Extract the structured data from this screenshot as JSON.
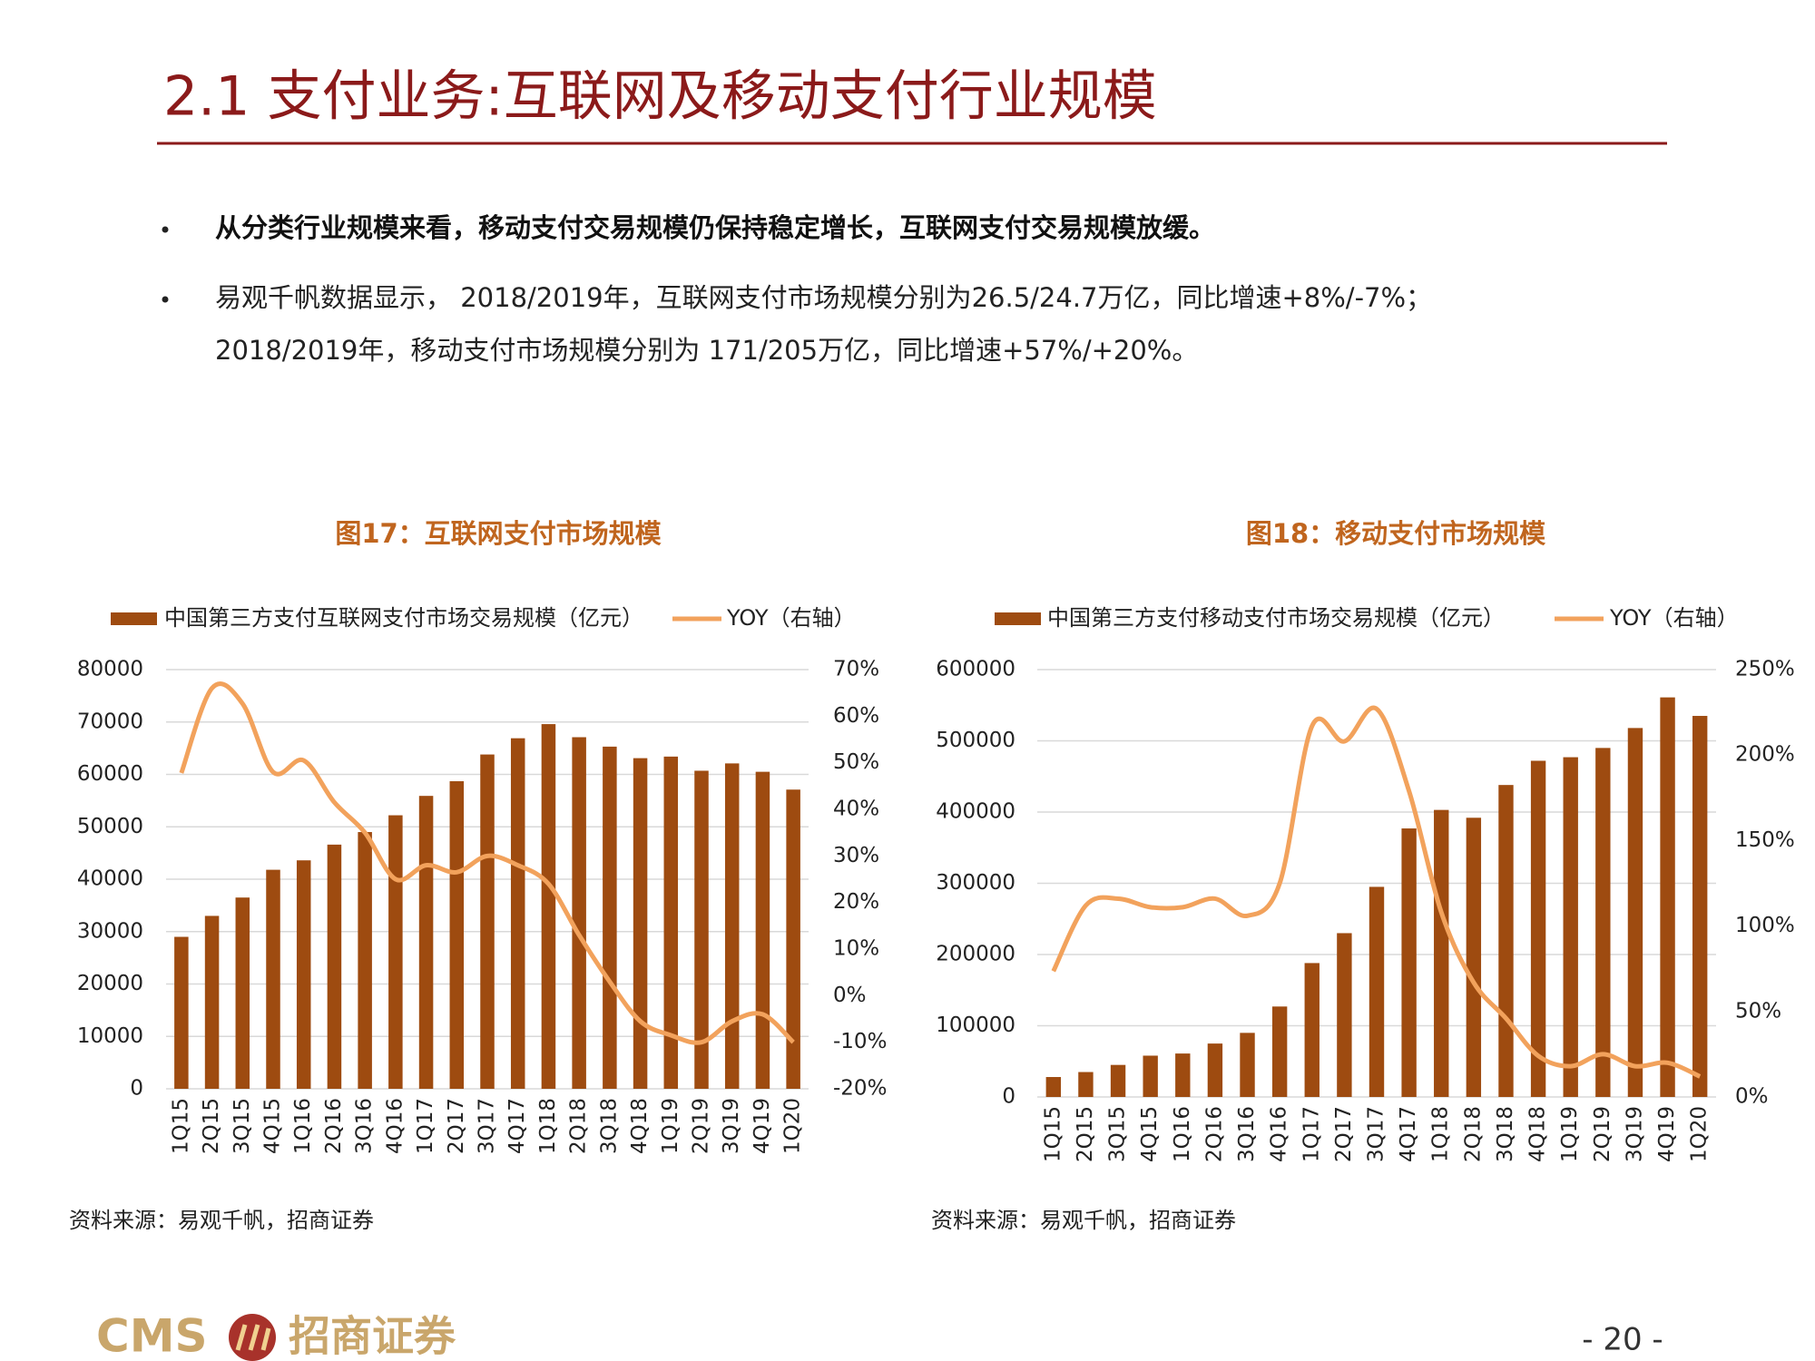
{
  "header": {
    "title": "2.1 支付业务:互联网及移动支付行业规模"
  },
  "bullets": [
    [
      "从分类行业规模来看，移动支付交易规模仍保持稳定增长，互联网支付交易规模放缓。"
    ],
    [
      "易观千帆数据显示， 2018/2019年，互联网支付市场规模分别为26.5/24.7万亿，同比增速+8%/-7%；",
      "2018/2019年，移动支付市场规模分别为 171/205万亿，同比增速+57%/+20%。"
    ]
  ],
  "chart_data": [
    {
      "type": "combo",
      "title": "图17：互联网支付市场规模",
      "source": "资料来源：易观千帆，招商证券",
      "categories": [
        "1Q15",
        "2Q15",
        "3Q15",
        "4Q15",
        "1Q16",
        "2Q16",
        "3Q16",
        "4Q16",
        "1Q17",
        "2Q17",
        "3Q17",
        "4Q17",
        "1Q18",
        "2Q18",
        "3Q18",
        "4Q18",
        "1Q19",
        "2Q19",
        "3Q19",
        "4Q19",
        "1Q20"
      ],
      "series": [
        {
          "name": "中国第三方支付互联网支付市场交易规模（亿元）",
          "type": "bar",
          "color": "#9e4b10",
          "values": [
            29000,
            33000,
            36500,
            41800,
            43600,
            46600,
            49000,
            52200,
            55900,
            58700,
            63800,
            66900,
            69600,
            67100,
            65300,
            63100,
            63400,
            60700,
            62100,
            60500,
            57100
          ]
        },
        {
          "name": "YOY（右轴）",
          "type": "line",
          "axis": "y2",
          "color": "#f2a25c",
          "values": [
            47.8,
            66,
            62.7,
            48,
            50.5,
            41.5,
            35,
            25,
            28,
            26.5,
            30,
            28,
            24,
            13,
            3,
            -5.5,
            -8.5,
            -10,
            -5.5,
            -4,
            -10
          ]
        }
      ],
      "ylim": [
        0,
        80000
      ],
      "yticks": [
        0,
        10000,
        20000,
        30000,
        40000,
        50000,
        60000,
        70000,
        80000
      ],
      "y2lim": [
        -20,
        70
      ],
      "y2ticks": [
        {
          "value": -20,
          "label": "-20%"
        },
        {
          "value": -10,
          "label": "-10%"
        },
        {
          "value": 0,
          "label": "0%"
        },
        {
          "value": 10,
          "label": "10%"
        },
        {
          "value": 20,
          "label": "20%"
        },
        {
          "value": 30,
          "label": "30%"
        },
        {
          "value": 40,
          "label": "40%"
        },
        {
          "value": 50,
          "label": "50%"
        },
        {
          "value": 60,
          "label": "60%"
        },
        {
          "value": 70,
          "label": "70%"
        }
      ],
      "grid": true
    },
    {
      "type": "combo",
      "title": "图18：移动支付市场规模",
      "source": "资料来源：易观千帆，招商证券",
      "categories": [
        "1Q15",
        "2Q15",
        "3Q15",
        "4Q15",
        "1Q16",
        "2Q16",
        "3Q16",
        "4Q16",
        "1Q17",
        "2Q17",
        "3Q17",
        "4Q17",
        "1Q18",
        "2Q18",
        "3Q18",
        "4Q18",
        "1Q19",
        "2Q19",
        "3Q19",
        "4Q19",
        "1Q20"
      ],
      "series": [
        {
          "name": "中国第三方支付移动支付市场交易规模（亿元）",
          "type": "bar",
          "color": "#9e4b10",
          "values": [
            28000,
            35000,
            45000,
            58000,
            61000,
            75000,
            90000,
            127000,
            188000,
            230000,
            295000,
            377000,
            403000,
            392000,
            438000,
            472000,
            477000,
            490000,
            518000,
            561000,
            535000
          ]
        },
        {
          "name": "YOY（右轴）",
          "type": "line",
          "axis": "y2",
          "color": "#f2a25c",
          "values": [
            73.6,
            112,
            116,
            111,
            111,
            116,
            106,
            125,
            217,
            208,
            227,
            179,
            108,
            67,
            46,
            24,
            18,
            25,
            18,
            20,
            12
          ]
        }
      ],
      "ylim": [
        0,
        600000
      ],
      "yticks": [
        0,
        100000,
        200000,
        300000,
        400000,
        500000,
        600000
      ],
      "y2lim": [
        0,
        250
      ],
      "y2ticks": [
        {
          "value": 0,
          "label": "0%"
        },
        {
          "value": 50,
          "label": "50%"
        },
        {
          "value": 100,
          "label": "100%"
        },
        {
          "value": 150,
          "label": "150%"
        },
        {
          "value": 200,
          "label": "200%"
        },
        {
          "value": 250,
          "label": "250%"
        }
      ],
      "grid": true
    }
  ],
  "footer": {
    "logo_en": "CMS",
    "logo_cn": "招商证券",
    "page": "- 20 -"
  }
}
